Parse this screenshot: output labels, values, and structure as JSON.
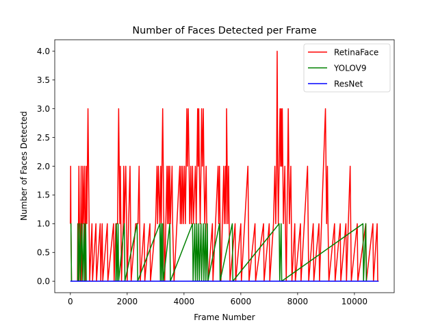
{
  "chart_data": {
    "type": "line",
    "title": "Number of Faces Detected per Frame",
    "xlabel": "Frame Number",
    "ylabel": "Number of Faces Detected",
    "xlim": [
      -550,
      11400
    ],
    "ylim": [
      -0.2,
      4.2
    ],
    "xticks": [
      0,
      2000,
      4000,
      6000,
      8000,
      10000
    ],
    "yticks": [
      0.0,
      0.5,
      1.0,
      1.5,
      2.0,
      2.5,
      3.0,
      3.5,
      4.0
    ],
    "grid": false,
    "legend_position": "top-right",
    "series": [
      {
        "name": "RetinaFace",
        "color": "#ff0000",
        "points": [
          [
            0,
            1
          ],
          [
            10,
            2
          ],
          [
            20,
            1
          ],
          [
            40,
            0
          ],
          [
            250,
            0
          ],
          [
            260,
            1
          ],
          [
            270,
            0
          ],
          [
            300,
            2
          ],
          [
            320,
            1
          ],
          [
            350,
            0
          ],
          [
            380,
            2
          ],
          [
            390,
            0
          ],
          [
            420,
            1
          ],
          [
            440,
            2
          ],
          [
            460,
            1
          ],
          [
            500,
            2
          ],
          [
            520,
            0
          ],
          [
            560,
            2
          ],
          [
            580,
            1
          ],
          [
            620,
            3
          ],
          [
            640,
            2
          ],
          [
            660,
            1
          ],
          [
            680,
            0
          ],
          [
            760,
            1
          ],
          [
            780,
            0
          ],
          [
            900,
            1
          ],
          [
            920,
            0
          ],
          [
            1050,
            1
          ],
          [
            1070,
            0
          ],
          [
            1120,
            1
          ],
          [
            1140,
            0
          ],
          [
            1300,
            1
          ],
          [
            1320,
            0
          ],
          [
            1520,
            1
          ],
          [
            1540,
            0
          ],
          [
            1600,
            1
          ],
          [
            1660,
            1
          ],
          [
            1700,
            3
          ],
          [
            1720,
            2
          ],
          [
            1740,
            1
          ],
          [
            1760,
            2
          ],
          [
            1780,
            1
          ],
          [
            1800,
            0
          ],
          [
            1860,
            1
          ],
          [
            1880,
            2
          ],
          [
            1900,
            1
          ],
          [
            1950,
            2
          ],
          [
            1980,
            1
          ],
          [
            2000,
            0
          ],
          [
            2100,
            2
          ],
          [
            2120,
            1
          ],
          [
            2140,
            0
          ],
          [
            2300,
            1
          ],
          [
            2380,
            1
          ],
          [
            2420,
            2
          ],
          [
            2440,
            1
          ],
          [
            2460,
            0
          ],
          [
            2600,
            1
          ],
          [
            2620,
            0
          ],
          [
            2800,
            1
          ],
          [
            2820,
            0
          ],
          [
            3000,
            1
          ],
          [
            3050,
            2
          ],
          [
            3070,
            1
          ],
          [
            3100,
            2
          ],
          [
            3150,
            1
          ],
          [
            3180,
            2
          ],
          [
            3200,
            1
          ],
          [
            3250,
            3
          ],
          [
            3270,
            2
          ],
          [
            3290,
            1
          ],
          [
            3320,
            0
          ],
          [
            3400,
            2
          ],
          [
            3420,
            1
          ],
          [
            3450,
            2
          ],
          [
            3470,
            1
          ],
          [
            3500,
            2
          ],
          [
            3520,
            1
          ],
          [
            3580,
            2
          ],
          [
            3600,
            1
          ],
          [
            3650,
            0
          ],
          [
            3850,
            2
          ],
          [
            3870,
            1
          ],
          [
            3900,
            2
          ],
          [
            3920,
            1
          ],
          [
            3960,
            2
          ],
          [
            3980,
            1
          ],
          [
            4020,
            2
          ],
          [
            4050,
            1
          ],
          [
            4100,
            3
          ],
          [
            4120,
            2
          ],
          [
            4150,
            3
          ],
          [
            4180,
            2
          ],
          [
            4200,
            1
          ],
          [
            4240,
            2
          ],
          [
            4260,
            1
          ],
          [
            4300,
            2
          ],
          [
            4330,
            1
          ],
          [
            4400,
            2
          ],
          [
            4430,
            1
          ],
          [
            4480,
            3
          ],
          [
            4500,
            2
          ],
          [
            4520,
            3
          ],
          [
            4540,
            2
          ],
          [
            4570,
            1
          ],
          [
            4600,
            2
          ],
          [
            4620,
            3
          ],
          [
            4650,
            2
          ],
          [
            4680,
            3
          ],
          [
            4700,
            2
          ],
          [
            4730,
            1
          ],
          [
            4780,
            2
          ],
          [
            4800,
            1
          ],
          [
            4850,
            0
          ],
          [
            5000,
            1
          ],
          [
            5020,
            0
          ],
          [
            5200,
            2
          ],
          [
            5220,
            1
          ],
          [
            5250,
            2
          ],
          [
            5270,
            1
          ],
          [
            5300,
            0
          ],
          [
            5400,
            2
          ],
          [
            5420,
            1
          ],
          [
            5460,
            2
          ],
          [
            5480,
            1
          ],
          [
            5500,
            3
          ],
          [
            5520,
            2
          ],
          [
            5540,
            1
          ],
          [
            5570,
            2
          ],
          [
            5590,
            1
          ],
          [
            5620,
            0
          ],
          [
            5800,
            1
          ],
          [
            5820,
            0
          ],
          [
            6000,
            1
          ],
          [
            6020,
            0
          ],
          [
            6250,
            2
          ],
          [
            6270,
            1
          ],
          [
            6290,
            0
          ],
          [
            6500,
            1
          ],
          [
            6520,
            0
          ],
          [
            6800,
            1
          ],
          [
            6820,
            0
          ],
          [
            7000,
            1
          ],
          [
            7020,
            0
          ],
          [
            7150,
            1
          ],
          [
            7200,
            2
          ],
          [
            7230,
            1
          ],
          [
            7260,
            2
          ],
          [
            7280,
            4
          ],
          [
            7300,
            2
          ],
          [
            7320,
            1
          ],
          [
            7350,
            2
          ],
          [
            7380,
            3
          ],
          [
            7400,
            2
          ],
          [
            7420,
            3
          ],
          [
            7440,
            2
          ],
          [
            7460,
            3
          ],
          [
            7480,
            2
          ],
          [
            7500,
            1
          ],
          [
            7550,
            2
          ],
          [
            7570,
            1
          ],
          [
            7600,
            0
          ],
          [
            7650,
            2
          ],
          [
            7670,
            3
          ],
          [
            7690,
            2
          ],
          [
            7710,
            1
          ],
          [
            7760,
            2
          ],
          [
            7780,
            1
          ],
          [
            7800,
            0
          ],
          [
            7900,
            1
          ],
          [
            7920,
            0
          ],
          [
            8100,
            1
          ],
          [
            8120,
            0
          ],
          [
            8350,
            2
          ],
          [
            8370,
            1
          ],
          [
            8390,
            0
          ],
          [
            8550,
            1
          ],
          [
            8570,
            0
          ],
          [
            8750,
            1
          ],
          [
            8770,
            0
          ],
          [
            8980,
            3
          ],
          [
            9000,
            2
          ],
          [
            9020,
            1
          ],
          [
            9050,
            2
          ],
          [
            9070,
            1
          ],
          [
            9100,
            0
          ],
          [
            9300,
            1
          ],
          [
            9320,
            0
          ],
          [
            9500,
            1
          ],
          [
            9520,
            0
          ],
          [
            9700,
            1
          ],
          [
            9720,
            0
          ],
          [
            9850,
            2
          ],
          [
            9870,
            1
          ],
          [
            9890,
            0
          ],
          [
            10100,
            1
          ],
          [
            10120,
            0
          ],
          [
            10400,
            1
          ],
          [
            10420,
            0
          ],
          [
            10650,
            1
          ],
          [
            10670,
            0
          ],
          [
            10800,
            1
          ],
          [
            10820,
            0
          ],
          [
            10850,
            0
          ]
        ]
      },
      {
        "name": "YOLOV9",
        "color": "#008000",
        "points": [
          [
            0,
            1
          ],
          [
            20,
            1
          ],
          [
            40,
            0
          ],
          [
            260,
            0
          ],
          [
            270,
            1
          ],
          [
            300,
            0
          ],
          [
            330,
            1
          ],
          [
            360,
            0
          ],
          [
            400,
            1
          ],
          [
            440,
            0
          ],
          [
            480,
            1
          ],
          [
            500,
            0
          ],
          [
            540,
            1
          ],
          [
            560,
            0
          ],
          [
            1600,
            0
          ],
          [
            1620,
            1
          ],
          [
            1650,
            0
          ],
          [
            1680,
            1
          ],
          [
            1700,
            0
          ],
          [
            1900,
            1
          ],
          [
            1920,
            0
          ],
          [
            2350,
            1
          ],
          [
            2370,
            0
          ],
          [
            3150,
            1
          ],
          [
            3170,
            0
          ],
          [
            3200,
            1
          ],
          [
            3220,
            0
          ],
          [
            3250,
            1
          ],
          [
            3270,
            0
          ],
          [
            3500,
            1
          ],
          [
            3520,
            0
          ],
          [
            4300,
            1
          ],
          [
            4320,
            0
          ],
          [
            4380,
            1
          ],
          [
            4400,
            0
          ],
          [
            4450,
            1
          ],
          [
            4470,
            0
          ],
          [
            4520,
            1
          ],
          [
            4540,
            0
          ],
          [
            4600,
            1
          ],
          [
            4620,
            0
          ],
          [
            4680,
            1
          ],
          [
            4700,
            0
          ],
          [
            4750,
            1
          ],
          [
            4770,
            0
          ],
          [
            4820,
            1
          ],
          [
            4840,
            0
          ],
          [
            5250,
            1
          ],
          [
            5270,
            0
          ],
          [
            5700,
            1
          ],
          [
            5720,
            0
          ],
          [
            7350,
            1
          ],
          [
            7370,
            0
          ],
          [
            7420,
            1
          ],
          [
            7440,
            0
          ],
          [
            10300,
            1
          ],
          [
            10320,
            0
          ],
          [
            10400,
            1
          ],
          [
            10420,
            0
          ],
          [
            10850,
            0
          ]
        ]
      },
      {
        "name": "ResNet",
        "color": "#0000ff",
        "points": [
          [
            0,
            0
          ],
          [
            10850,
            0
          ]
        ]
      }
    ]
  }
}
